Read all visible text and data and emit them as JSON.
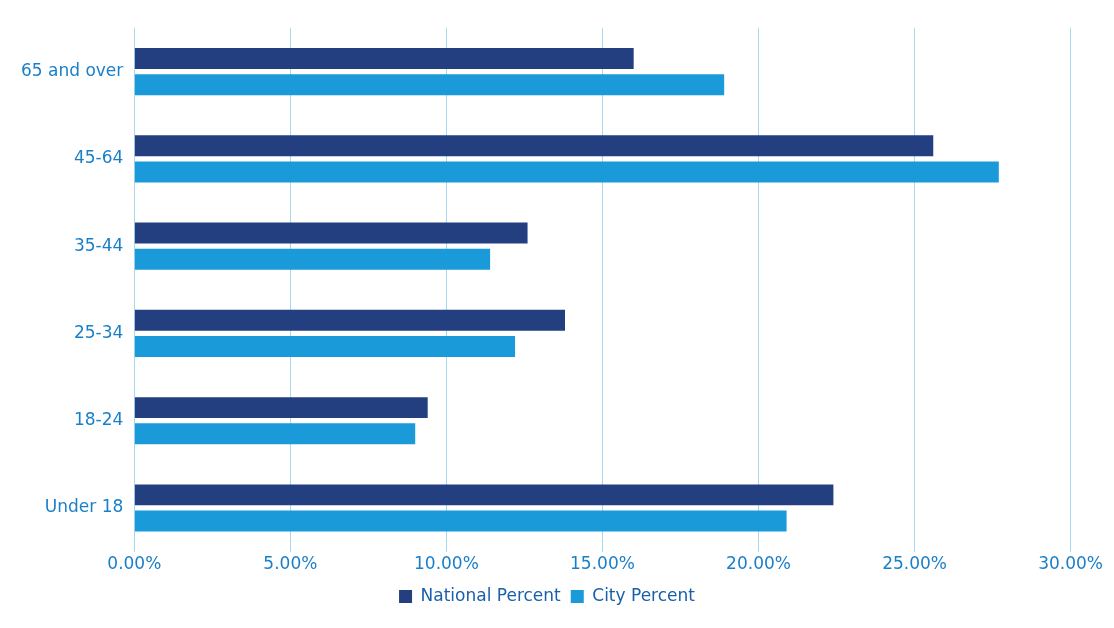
{
  "chart_data": {
    "type": "bar",
    "orientation": "horizontal",
    "categories": [
      "65 and over",
      "45-64",
      "35-44",
      "25-34",
      "18-24",
      "Under 18"
    ],
    "series": [
      {
        "name": "National Percent",
        "color": "#233f80",
        "values": [
          16.0,
          25.6,
          12.6,
          13.8,
          9.4,
          22.4
        ]
      },
      {
        "name": "City Percent",
        "color": "#1a9ad9",
        "values": [
          18.9,
          27.7,
          11.4,
          12.2,
          9.0,
          20.9
        ]
      }
    ],
    "xlim": [
      0,
      30
    ],
    "xticks": [
      {
        "value": 0,
        "label": "0.00%"
      },
      {
        "value": 5,
        "label": "5.00%"
      },
      {
        "value": 10,
        "label": "10.00%"
      },
      {
        "value": 15,
        "label": "15.00%"
      },
      {
        "value": 20,
        "label": "20.00%"
      },
      {
        "value": 25,
        "label": "25.00%"
      },
      {
        "value": 30,
        "label": "30.00%"
      }
    ],
    "grid": "x",
    "legend": "bottom"
  }
}
